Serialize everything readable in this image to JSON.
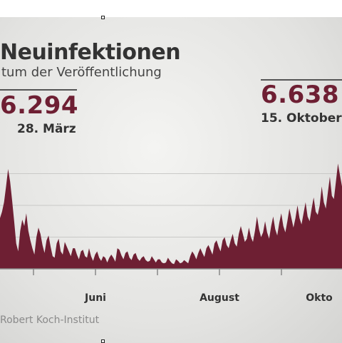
{
  "chart_data": {
    "type": "area",
    "title": "Neuinfektionen",
    "subtitle": "tum der Veröffentlichung",
    "source": "Robert Koch-Institut",
    "annotations": [
      {
        "value": "6.294",
        "date": "28. März"
      },
      {
        "value": "6.638",
        "date": "15. Oktober"
      }
    ],
    "x_tick_labels": [
      "Juni",
      "August",
      "Okto"
    ],
    "ylim": [
      0,
      7000
    ],
    "grid": true,
    "series": [
      {
        "color": "#6e1f33",
        "values": [
          3200,
          3600,
          4200,
          5200,
          6294,
          5500,
          4300,
          3000,
          1600,
          1100,
          2400,
          3100,
          2700,
          3500,
          2400,
          1800,
          1300,
          900,
          2000,
          2600,
          2200,
          1500,
          1000,
          1800,
          2100,
          1400,
          800,
          700,
          1600,
          1900,
          1100,
          900,
          1700,
          1400,
          1100,
          800,
          1300,
          1300,
          900,
          600,
          1100,
          1200,
          800,
          700,
          1300,
          800,
          500,
          900,
          1100,
          700,
          500,
          800,
          700,
          400,
          700,
          900,
          700,
          450,
          1300,
          1200,
          850,
          600,
          1000,
          1100,
          700,
          550,
          900,
          1000,
          650,
          500,
          700,
          800,
          550,
          450,
          500,
          800,
          600,
          400,
          600,
          600,
          400,
          350,
          400,
          700,
          500,
          350,
          300,
          600,
          500,
          350,
          400,
          550,
          450,
          350,
          800,
          1100,
          900,
          600,
          1000,
          1300,
          1000,
          750,
          1300,
          1500,
          1200,
          900,
          1600,
          1800,
          1400,
          1100,
          1800,
          2000,
          1500,
          1300,
          1800,
          2200,
          1600,
          1400,
          2200,
          2700,
          2200,
          1700,
          1900,
          2600,
          2000,
          1700,
          2400,
          3300,
          2500,
          2000,
          2300,
          3000,
          2300,
          1900,
          2700,
          3300,
          2500,
          2100,
          2900,
          3500,
          2700,
          2300,
          3000,
          3800,
          3200,
          2600,
          3200,
          4000,
          3200,
          2800,
          3500,
          4200,
          3300,
          3000,
          3800,
          4500,
          3600,
          3400,
          4000,
          5200,
          4200,
          3800,
          4800,
          5800,
          4600,
          4400,
          5500,
          6638,
          5900,
          5200
        ]
      }
    ]
  }
}
